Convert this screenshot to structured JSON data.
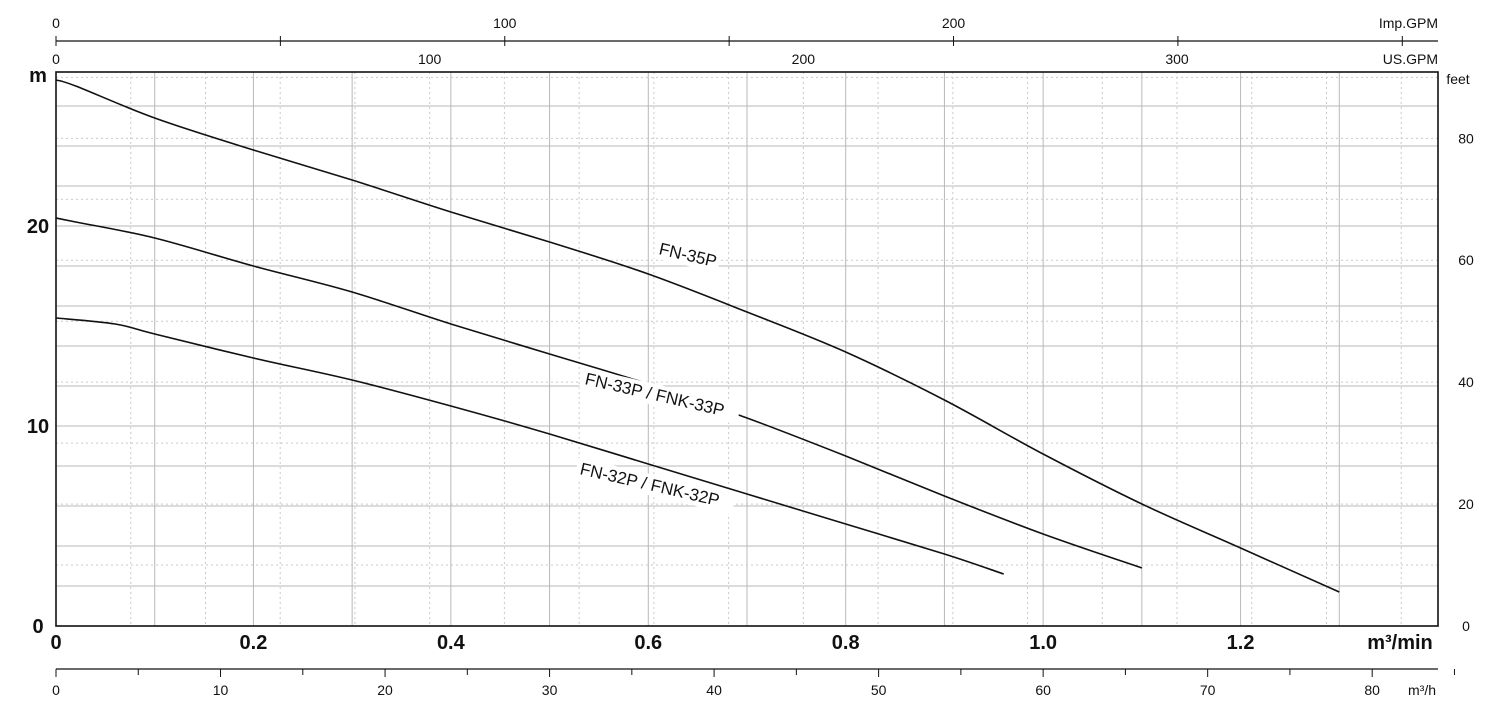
{
  "chart_data": {
    "type": "line",
    "title": "",
    "x_axis_main": {
      "unit_label": "m³/min",
      "range": [
        0,
        1.4
      ],
      "ticks": [
        0,
        0.2,
        0.4,
        0.6,
        0.8,
        1.0,
        1.2
      ],
      "tick_labels": [
        "0",
        "0.2",
        "0.4",
        "0.6",
        "0.8",
        "1.0",
        "1.2"
      ]
    },
    "y_axis_left": {
      "unit_label": "m",
      "range": [
        0,
        27.7
      ],
      "ticks": [
        0,
        10,
        20
      ],
      "tick_labels": [
        "0",
        "10",
        "20"
      ]
    },
    "y_axis_right": {
      "unit_label": "feet",
      "ticks": [
        0,
        20,
        40,
        60,
        80
      ],
      "tick_labels": [
        "0",
        "20",
        "40",
        "60",
        "80"
      ]
    },
    "x_axis_top_1": {
      "unit_label": "Imp.GPM",
      "ticks": [
        0,
        100,
        200
      ],
      "tick_labels": [
        "0",
        "100",
        "200"
      ],
      "minor_ticks": [
        50,
        150,
        250,
        300
      ]
    },
    "x_axis_top_2": {
      "unit_label": "US.GPM",
      "ticks": [
        0,
        100,
        200,
        300
      ],
      "tick_labels": [
        "0",
        "100",
        "200",
        "300"
      ]
    },
    "x_axis_bottom_2": {
      "unit_label": "m³/h",
      "ticks": [
        0,
        10,
        20,
        30,
        40,
        50,
        60,
        70,
        80
      ],
      "tick_labels": [
        "0",
        "10",
        "20",
        "30",
        "40",
        "50",
        "60",
        "70",
        "80"
      ]
    },
    "grid": true,
    "series": [
      {
        "name": "FN-35P",
        "x": [
          0,
          0.02,
          0.1,
          0.2,
          0.3,
          0.4,
          0.5,
          0.6,
          0.7,
          0.8,
          0.9,
          1.0,
          1.1,
          1.2,
          1.3
        ],
        "y": [
          27.3,
          27.0,
          25.4,
          23.8,
          22.3,
          20.7,
          19.2,
          17.6,
          15.7,
          13.7,
          11.3,
          8.6,
          6.1,
          3.9,
          1.7
        ],
        "label_at": [
          0.61,
          18.6
        ],
        "label_angle": 13
      },
      {
        "name": "FN-33P / FNK-33P",
        "x": [
          0,
          0.02,
          0.1,
          0.2,
          0.3,
          0.4,
          0.5,
          0.6,
          0.7,
          0.8,
          0.9,
          1.0,
          1.1
        ],
        "y": [
          20.4,
          20.2,
          19.4,
          18.0,
          16.7,
          15.1,
          13.6,
          12.1,
          10.4,
          8.5,
          6.5,
          4.6,
          2.9
        ],
        "label_at": [
          0.535,
          12.1
        ],
        "label_angle": 13
      },
      {
        "name": "FN-32P / FNK-32P",
        "x": [
          0,
          0.06,
          0.1,
          0.2,
          0.3,
          0.4,
          0.5,
          0.6,
          0.7,
          0.8,
          0.9,
          0.96
        ],
        "y": [
          15.4,
          15.1,
          14.6,
          13.4,
          12.3,
          11.0,
          9.6,
          8.1,
          6.6,
          5.1,
          3.6,
          2.6
        ],
        "label_at": [
          0.53,
          7.6
        ],
        "label_angle": 13
      }
    ]
  }
}
